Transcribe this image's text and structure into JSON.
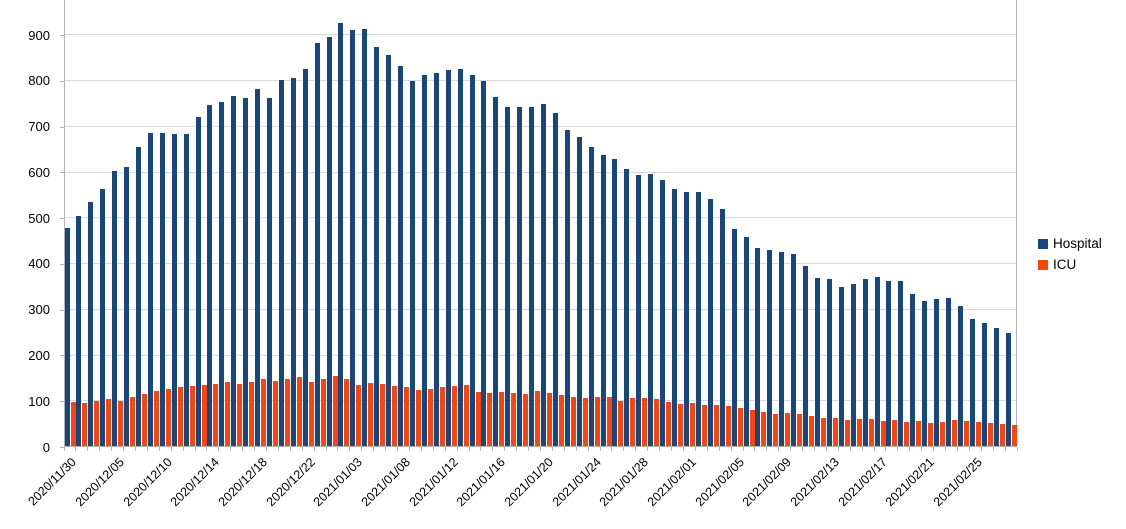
{
  "chart_data": {
    "type": "bar",
    "title": "",
    "xlabel": "",
    "ylabel": "",
    "grid": "horizontal",
    "legend_position": "right",
    "y_ticks": [
      0,
      100,
      200,
      300,
      400,
      500,
      600,
      700,
      800,
      900
    ],
    "ylim": [
      0,
      977
    ],
    "x_label_every": 4,
    "x_tick_labels": [
      "2020/11/30",
      "2020/12/05",
      "2020/12/10",
      "2020/12/14",
      "2020/12/18",
      "2020/12/22",
      "2021/01/03",
      "2021/01/08",
      "2021/01/12",
      "2021/01/16",
      "2021/01/20",
      "2021/01/24",
      "2021/01/28",
      "2021/02/01",
      "2021/02/05",
      "2021/02/09",
      "2021/02/13",
      "2021/02/17",
      "2021/02/21",
      "2021/02/25"
    ],
    "series": [
      {
        "name": "Hospital",
        "color": "#17477D",
        "values": [
          477,
          503,
          534,
          561,
          602,
          610,
          654,
          685,
          685,
          681,
          681,
          720,
          745,
          751,
          765,
          760,
          780,
          761,
          800,
          804,
          823,
          880,
          893,
          925,
          909,
          912,
          872,
          854,
          831,
          798,
          811,
          816,
          822,
          823,
          812,
          798,
          763,
          740,
          741,
          742,
          747,
          727,
          690,
          675,
          653,
          637,
          627,
          605,
          592,
          595,
          581,
          561,
          555,
          556,
          539,
          519,
          474,
          456,
          432,
          428,
          424,
          419,
          393,
          368,
          366,
          347,
          354,
          364,
          369,
          361,
          360,
          333,
          318,
          322,
          324,
          306,
          277,
          268,
          259,
          246
        ]
      },
      {
        "name": "ICU",
        "color": "#FF420E",
        "values": [
          96,
          95,
          98,
          102,
          99,
          108,
          113,
          120,
          124,
          128,
          132,
          133,
          136,
          139,
          136,
          139,
          146,
          143,
          147,
          150,
          141,
          146,
          152,
          147,
          133,
          137,
          135,
          131,
          128,
          123,
          125,
          128,
          132,
          133,
          119,
          116,
          118,
          115,
          114,
          120,
          115,
          111,
          108,
          104,
          107,
          108,
          99,
          104,
          105,
          103,
          96,
          92,
          94,
          90,
          89,
          87,
          82,
          78,
          74,
          71,
          73,
          71,
          66,
          61,
          62,
          57,
          58,
          59,
          54,
          57,
          53,
          54,
          51,
          53,
          56,
          55,
          52,
          50,
          48,
          47
        ]
      }
    ],
    "colors": {
      "background": "#FFFFFF",
      "gridline": "#D9D9D9",
      "axis": "#B3B3B3",
      "text": "#000000"
    }
  }
}
